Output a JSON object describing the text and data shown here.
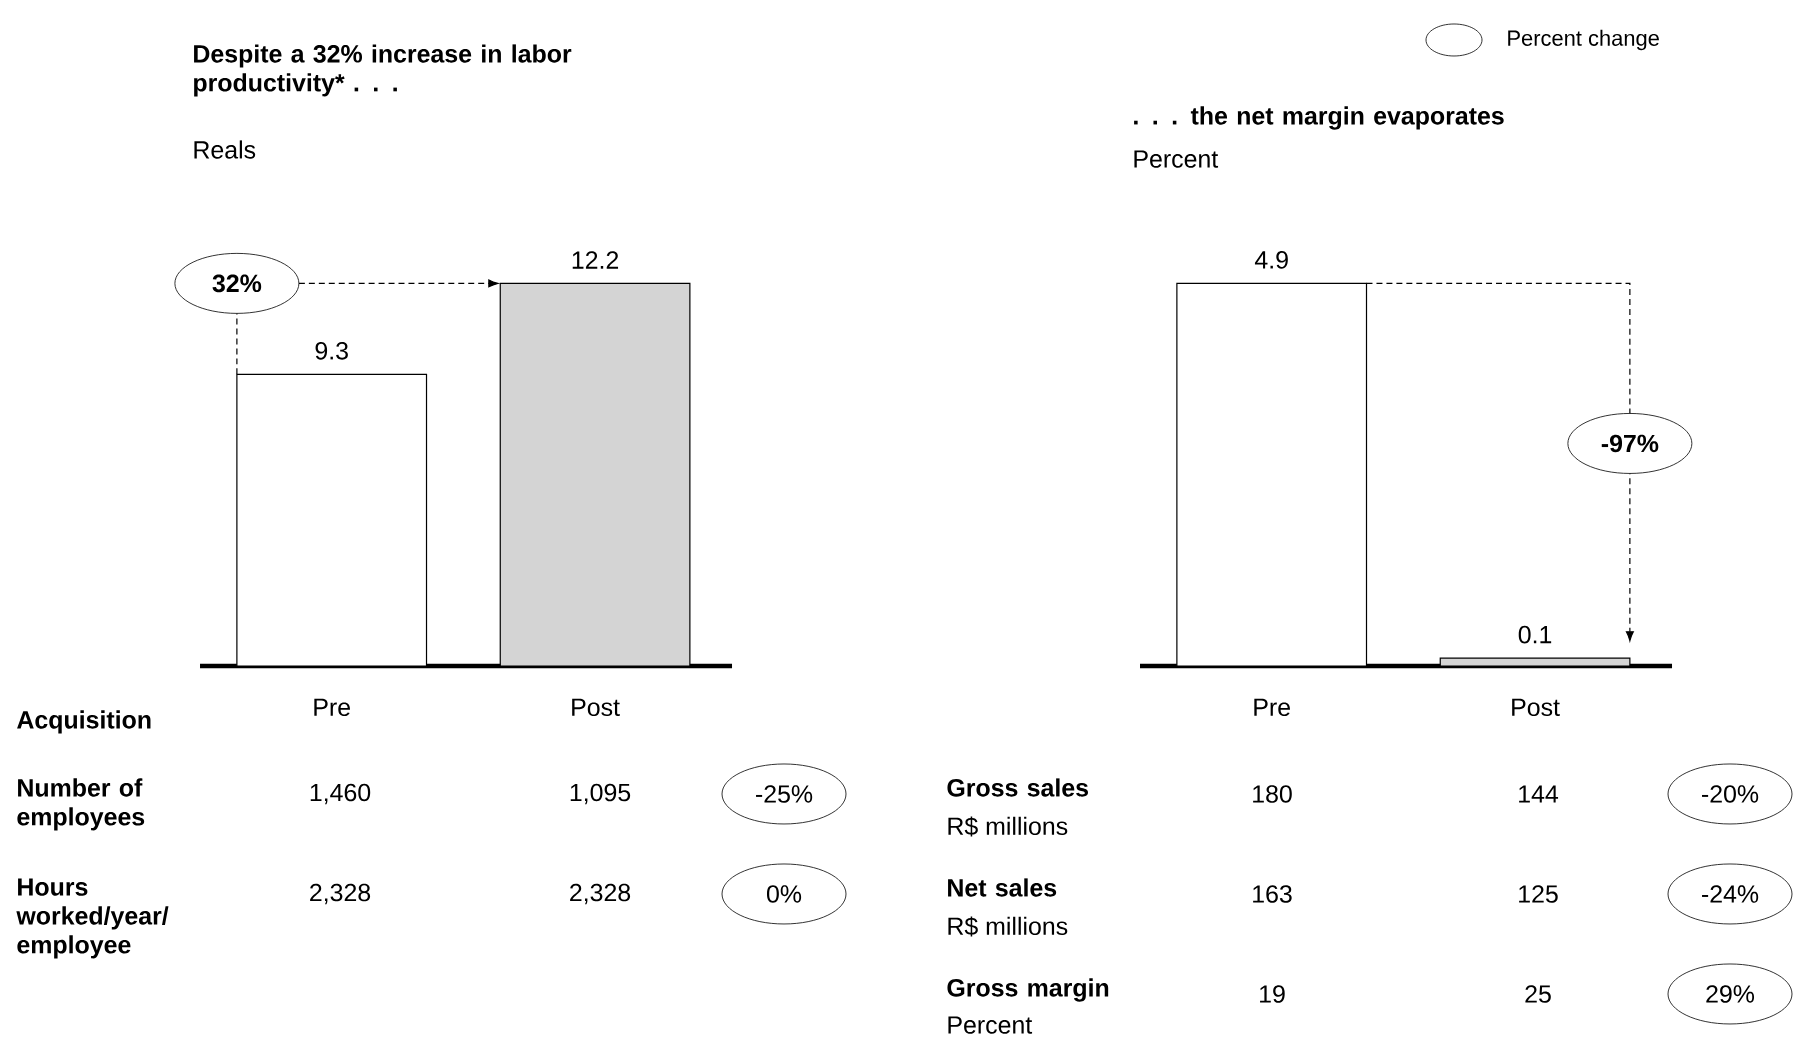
{
  "chart_data": [
    {
      "type": "bar",
      "title": "Despite a 32% increase in labor productivity* . . .",
      "subtitle": "Reals",
      "categories": [
        "Pre",
        "Post"
      ],
      "values": [
        9.3,
        12.2
      ],
      "colors": [
        "#ffffff",
        "#d4d4d4"
      ],
      "data_labels": true,
      "annotations": [
        "32%",
        "Acquisition",
        "Number of employees",
        "1,460",
        "1,095",
        "-25%",
        "Hours worked/year/ employee",
        "2,328",
        "2,328",
        "0%"
      ]
    },
    {
      "type": "bar",
      "title": ". . . the net margin evaporates",
      "subtitle": "Percent",
      "categories": [
        "Pre",
        "Post"
      ],
      "values": [
        4.9,
        0.1
      ],
      "colors": [
        "#ffffff",
        "#d4d4d4"
      ],
      "data_labels": true,
      "annotations": [
        "-97%",
        "Percent change",
        "Gross sales",
        "R$ millions",
        "180",
        "144",
        "-20%",
        "Net sales",
        "R$ millions",
        "163",
        "125",
        "-24%",
        "Gross margin",
        "Percent",
        "19",
        "25",
        "29%"
      ]
    }
  ]
}
